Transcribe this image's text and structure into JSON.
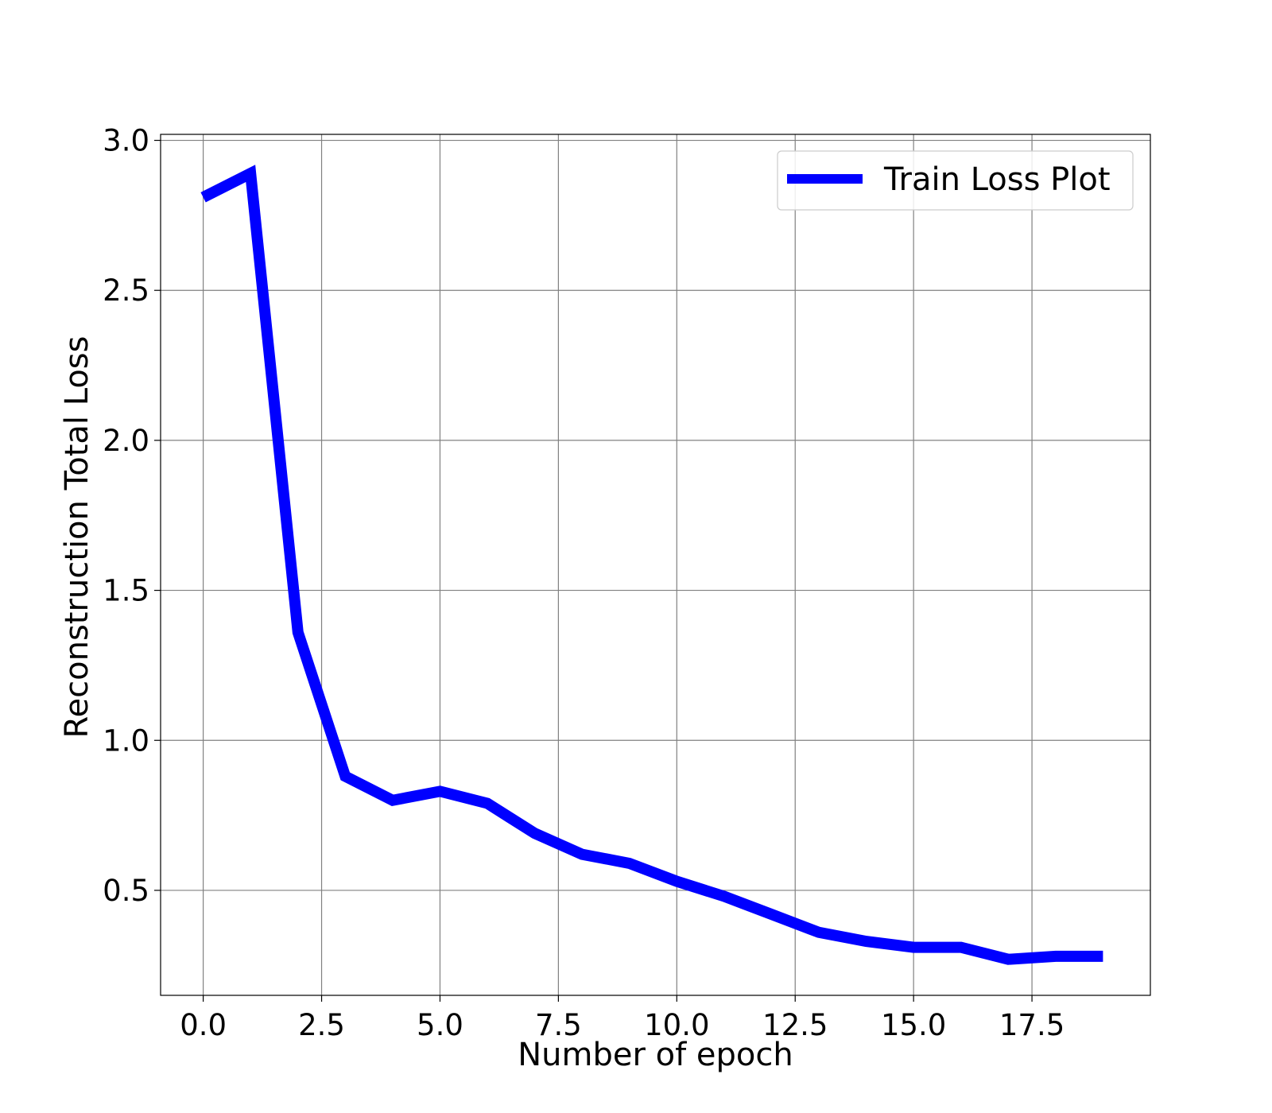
{
  "chart_data": {
    "type": "line",
    "xlabel": "Number of epoch",
    "ylabel": "Reconstruction Total Loss",
    "xlim": [
      -0.9,
      20.0
    ],
    "ylim": [
      0.15,
      3.02
    ],
    "xticks": [
      0,
      2.5,
      5,
      7.5,
      10,
      12.5,
      15,
      17.5
    ],
    "xtick_labels": [
      "0.0",
      "2.5",
      "5.0",
      "7.5",
      "10.0",
      "12.5",
      "15.0",
      "17.5"
    ],
    "yticks": [
      0.5,
      1.0,
      1.5,
      2.0,
      2.5,
      3.0
    ],
    "ytick_labels": [
      "0.5",
      "1.0",
      "1.5",
      "2.0",
      "2.5",
      "3.0"
    ],
    "grid": true,
    "legend_position": "top-right",
    "series": [
      {
        "name": "Train Loss Plot",
        "color": "#0000ff",
        "x": [
          0,
          1,
          2,
          3,
          4,
          5,
          6,
          7,
          8,
          9,
          10,
          11,
          12,
          13,
          14,
          15,
          16,
          17,
          18,
          19
        ],
        "y": [
          2.81,
          2.89,
          1.36,
          0.88,
          0.8,
          0.83,
          0.79,
          0.69,
          0.62,
          0.59,
          0.53,
          0.48,
          0.42,
          0.36,
          0.33,
          0.31,
          0.31,
          0.27,
          0.28,
          0.28
        ]
      }
    ]
  }
}
